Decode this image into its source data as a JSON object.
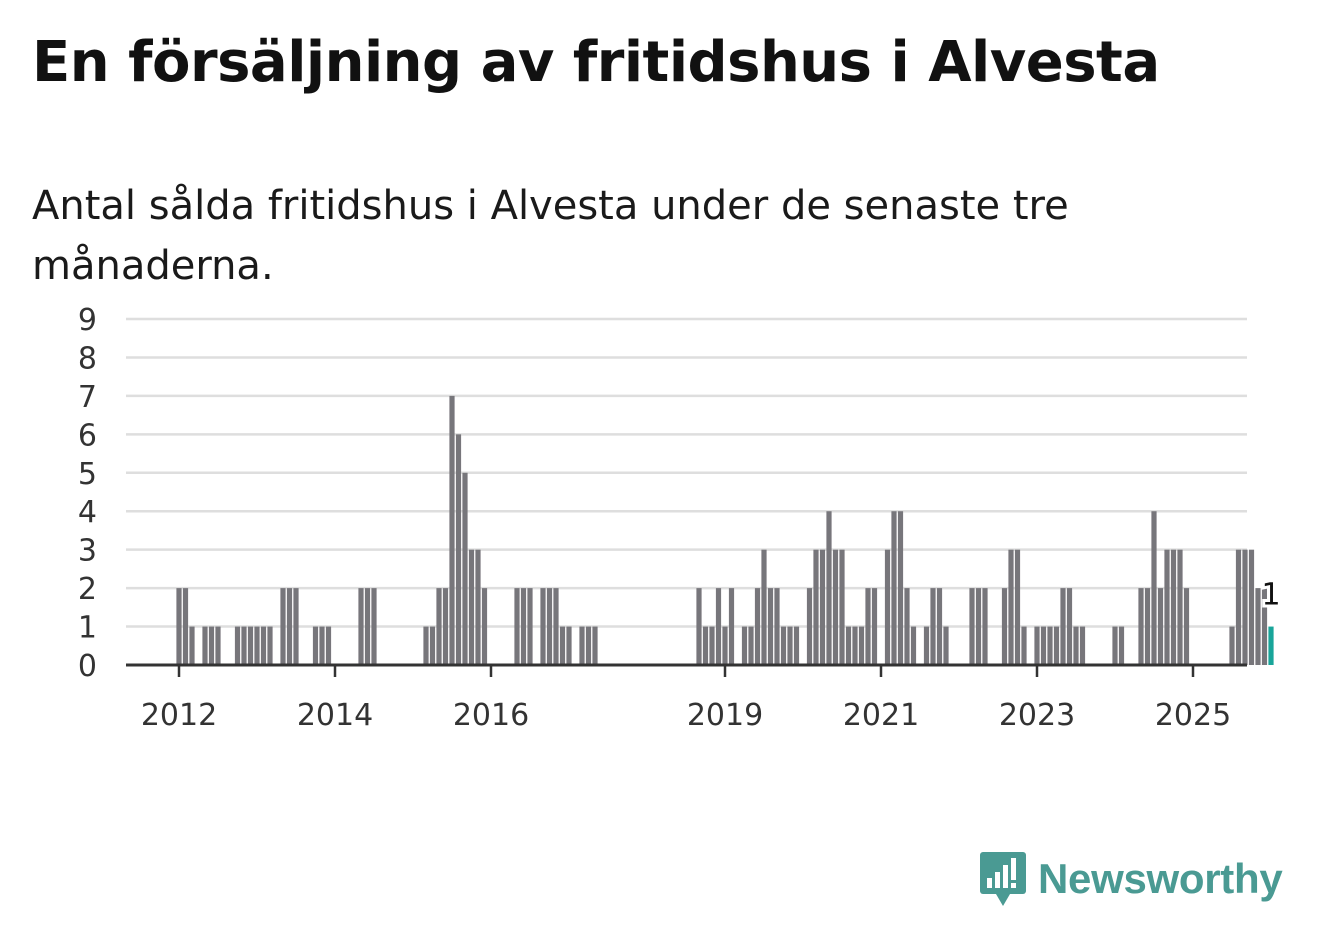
{
  "header": {
    "title": "En försäljning av fritidshus i Alvesta",
    "subtitle": "Antal sålda fritidshus i Alvesta under de senaste tre månaderna."
  },
  "brand": {
    "name": "Newsworthy",
    "icon": "newsworthy-logo-icon",
    "color": "#4a9a93"
  },
  "colors": {
    "bar": "#77767b",
    "highlight": "#19a59a",
    "grid": "#dedede",
    "axis": "#333333"
  },
  "chart_data": {
    "type": "bar",
    "ylim": [
      0,
      9
    ],
    "yticks": [
      0,
      1,
      2,
      3,
      4,
      5,
      6,
      7,
      8,
      9
    ],
    "xticks": [
      {
        "label": "2012",
        "month": 0
      },
      {
        "label": "2014",
        "month": 24
      },
      {
        "label": "2016",
        "month": 48
      },
      {
        "label": "2019",
        "month": 84
      },
      {
        "label": "2021",
        "month": 108
      },
      {
        "label": "2023",
        "month": 132
      },
      {
        "label": "2025",
        "month": 156
      }
    ],
    "start": "2012-01",
    "series": [
      {
        "values": [
          2,
          2,
          1,
          0,
          1,
          1,
          1,
          0,
          0,
          1,
          1,
          1,
          1,
          1,
          1,
          0,
          2,
          2,
          2,
          0,
          0,
          1,
          1,
          1,
          0,
          0,
          0,
          0,
          2,
          2,
          2,
          0,
          0,
          0,
          0,
          0,
          0,
          0,
          1,
          1,
          2,
          2,
          7,
          6,
          5,
          3,
          3,
          2,
          0,
          0,
          0,
          0,
          2,
          2,
          2,
          0,
          2,
          2,
          2,
          1,
          1,
          0,
          1,
          1,
          1,
          0,
          0,
          0,
          0,
          0,
          0,
          0,
          0,
          0,
          0,
          0,
          0,
          0,
          0,
          0,
          2,
          1,
          1,
          2,
          1,
          2,
          0,
          1,
          1,
          2,
          3,
          2,
          2,
          1,
          1,
          1,
          0,
          2,
          3,
          3,
          4,
          3,
          3,
          1,
          1,
          1,
          2,
          2,
          0,
          3,
          4,
          4,
          2,
          1,
          0,
          1,
          2,
          2,
          1,
          0,
          0,
          0,
          2,
          2,
          2,
          0,
          0,
          2,
          3,
          3,
          1,
          0,
          1,
          1,
          1,
          1,
          2,
          2,
          1,
          1,
          0,
          0,
          0,
          0,
          1,
          1,
          0,
          0,
          2,
          2,
          4,
          2,
          3,
          3,
          3,
          2,
          0,
          0,
          0,
          0,
          0,
          0,
          1,
          3,
          3,
          3,
          2,
          2,
          1
        ]
      }
    ],
    "last_value_label": "1",
    "highlight_last": true
  }
}
